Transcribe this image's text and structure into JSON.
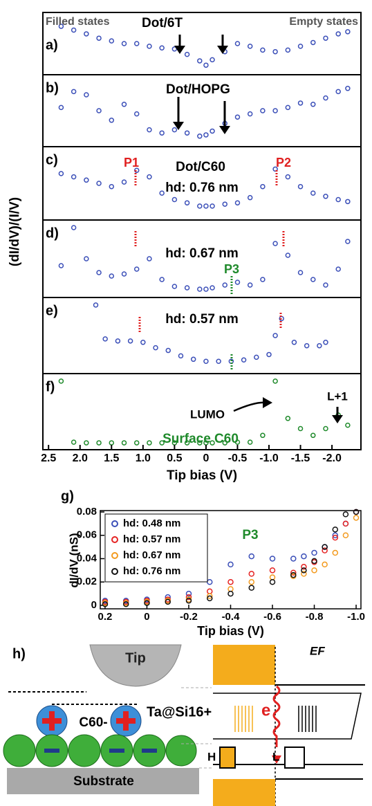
{
  "chart_data": [
    {
      "type": "scatter",
      "label": "a)",
      "ylabel": "(dI/dV)/(I/V)",
      "color": "#3b4fb8",
      "annotations": [
        "Filled states",
        "Dot/6T",
        "Empty states"
      ],
      "xlim": [
        2.59,
        -2.46
      ],
      "ylim": [
        0,
        1
      ],
      "x": [
        2.3,
        2.1,
        1.9,
        1.7,
        1.5,
        1.3,
        1.1,
        0.9,
        0.7,
        0.5,
        0.3,
        0.1,
        0,
        -0.1,
        -0.3,
        -0.5,
        -0.7,
        -0.9,
        -1.1,
        -1.3,
        -1.5,
        -1.7,
        -1.9,
        -2.1,
        -2.25
      ],
      "values": [
        0.82,
        0.75,
        0.68,
        0.6,
        0.55,
        0.5,
        0.5,
        0.45,
        0.42,
        0.4,
        0.3,
        0.18,
        0.1,
        0.2,
        0.35,
        0.5,
        0.45,
        0.38,
        0.35,
        0.38,
        0.45,
        0.52,
        0.6,
        0.68,
        0.72
      ]
    },
    {
      "type": "scatter",
      "label": "b)",
      "color": "#3b4fb8",
      "annotations": [
        "Dot/HOPG"
      ],
      "xlim": [
        2.59,
        -2.46
      ],
      "ylim": [
        0,
        1
      ],
      "x": [
        2.3,
        2.1,
        1.9,
        1.7,
        1.5,
        1.3,
        1.1,
        0.9,
        0.7,
        0.5,
        0.3,
        0.1,
        0,
        -0.1,
        -0.3,
        -0.5,
        -0.7,
        -0.9,
        -1.1,
        -1.3,
        -1.5,
        -1.7,
        -1.9,
        -2.1,
        -2.25
      ],
      "values": [
        0.55,
        0.8,
        0.75,
        0.5,
        0.35,
        0.6,
        0.45,
        0.2,
        0.15,
        0.2,
        0.15,
        0.1,
        0.12,
        0.18,
        0.3,
        0.4,
        0.45,
        0.5,
        0.5,
        0.55,
        0.62,
        0.6,
        0.7,
        0.8,
        0.85
      ]
    },
    {
      "type": "scatter",
      "label": "c)",
      "color": "#3b4fb8",
      "annotations": [
        "P1",
        "Dot/C60",
        "hd: 0.76 nm",
        "P2"
      ],
      "xlim": [
        2.59,
        -2.46
      ],
      "ylim": [
        0,
        1
      ],
      "x": [
        2.3,
        2.1,
        1.9,
        1.7,
        1.5,
        1.3,
        1.1,
        0.9,
        0.7,
        0.5,
        0.3,
        0.1,
        0,
        -0.1,
        -0.3,
        -0.5,
        -0.7,
        -0.9,
        -1.1,
        -1.3,
        -1.5,
        -1.7,
        -1.9,
        -2.1,
        -2.25
      ],
      "values": [
        0.65,
        0.6,
        0.55,
        0.5,
        0.45,
        0.52,
        0.7,
        0.6,
        0.35,
        0.25,
        0.2,
        0.15,
        0.15,
        0.15,
        0.18,
        0.2,
        0.28,
        0.45,
        0.72,
        0.6,
        0.45,
        0.35,
        0.3,
        0.25,
        0.22
      ]
    },
    {
      "type": "scatter",
      "label": "d)",
      "color": "#3b4fb8",
      "annotations": [
        "hd: 0.67 nm",
        "P3"
      ],
      "xlim": [
        2.59,
        -2.46
      ],
      "ylim": [
        0,
        1
      ],
      "x": [
        2.3,
        2.1,
        1.9,
        1.7,
        1.5,
        1.3,
        1.1,
        0.9,
        0.7,
        0.5,
        0.3,
        0.1,
        0,
        -0.1,
        -0.3,
        -0.5,
        -0.7,
        -0.9,
        -1.1,
        -1.3,
        -1.5,
        -1.7,
        -1.9,
        -2.1,
        -2.25
      ],
      "values": [
        0.4,
        0.95,
        0.5,
        0.3,
        0.25,
        0.28,
        0.35,
        0.5,
        0.2,
        0.1,
        0.08,
        0.06,
        0.06,
        0.08,
        0.12,
        0.16,
        0.12,
        0.2,
        0.72,
        0.55,
        0.3,
        0.2,
        0.12,
        0.35,
        0.75
      ]
    },
    {
      "type": "scatter",
      "label": "e)",
      "color": "#3b4fb8",
      "annotations": [
        "hd: 0.57 nm"
      ],
      "xlim": [
        2.59,
        -2.46
      ],
      "ylim": [
        0,
        1
      ],
      "x": [
        1.75,
        1.6,
        1.4,
        1.2,
        1.0,
        0.8,
        0.6,
        0.4,
        0.2,
        0,
        -0.2,
        -0.4,
        -0.6,
        -0.8,
        -1.0,
        -1.1,
        -1.2,
        -1.4,
        -1.6,
        -1.8,
        -1.9
      ],
      "values": [
        0.95,
        0.45,
        0.42,
        0.42,
        0.4,
        0.32,
        0.28,
        0.2,
        0.15,
        0.12,
        0.12,
        0.12,
        0.14,
        0.18,
        0.22,
        0.5,
        0.75,
        0.4,
        0.35,
        0.35,
        0.4
      ]
    },
    {
      "type": "scatter",
      "label": "f)",
      "color": "#1f8a2b",
      "annotations": [
        "LUMO",
        "Surface C60",
        "L+1"
      ],
      "xlim": [
        2.59,
        -2.46
      ],
      "ylim": [
        0,
        1
      ],
      "xlabel": "Tip bias (V)",
      "xticks": [
        2.5,
        {
          "value": 2,
          "label": "2.0"
        },
        1.5,
        {
          "value": 1,
          "label": "1.0"
        },
        0.5,
        0,
        -0.5,
        {
          "value": -1,
          "label": "-1.0"
        },
        -1.5,
        {
          "value": -2,
          "label": "-2.0"
        }
      ],
      "x": [
        2.3,
        2.1,
        1.9,
        1.7,
        1.5,
        1.3,
        1.1,
        0.9,
        0.7,
        0.5,
        0.3,
        0.1,
        0,
        -0.1,
        -0.3,
        -0.5,
        -0.7,
        -0.9,
        -1.1,
        -1.3,
        -1.5,
        -1.7,
        -1.9,
        -2.1,
        -2.25
      ],
      "values": [
        0.95,
        0.05,
        0.04,
        0.04,
        0.04,
        0.04,
        0.04,
        0.04,
        0.04,
        0.04,
        0.04,
        0.04,
        0.04,
        0.04,
        0.04,
        0.05,
        0.05,
        0.15,
        0.95,
        0.4,
        0.25,
        0.15,
        0.25,
        0.45,
        0.3
      ]
    },
    {
      "type": "scatter",
      "label": "g)",
      "xlabel": "Tip bias (V)",
      "ylabel": "dI/dV (nS)",
      "annotations": [
        "P3"
      ],
      "xlim": [
        0.223,
        -1.023
      ],
      "ylim": [
        -0.003,
        0.0812
      ],
      "xticks": [
        0.2,
        0,
        -0.2,
        -0.4,
        -0.6,
        -0.8,
        {
          "value": -1,
          "label": "-1.0"
        }
      ],
      "yticks": [
        0,
        0.02,
        0.04,
        0.06,
        0.08
      ],
      "x": [
        0.2,
        0.1,
        0,
        -0.1,
        -0.2,
        -0.3,
        -0.4,
        -0.5,
        -0.6,
        -0.7,
        -0.75,
        -0.8,
        -0.85,
        -0.9,
        -0.95,
        -1.0
      ],
      "series": [
        {
          "name": "hd: 0.48 nm",
          "color": "#3b4fb8",
          "values": [
            0.004,
            0.004,
            0.005,
            0.007,
            0.01,
            0.02,
            0.035,
            0.042,
            0.04,
            0.04,
            0.042,
            0.045,
            0.05,
            0.06,
            0.07,
            0.08
          ]
        },
        {
          "name": "hd: 0.57 nm",
          "color": "#e52222",
          "values": [
            0.003,
            0.003,
            0.004,
            0.005,
            0.007,
            0.012,
            0.02,
            0.027,
            0.03,
            0.028,
            0.033,
            0.037,
            0.047,
            0.058,
            0.07,
            0.08
          ]
        },
        {
          "name": "hd: 0.67 nm",
          "color": "#f39a1e",
          "values": [
            0.002,
            0.002,
            0.003,
            0.004,
            0.005,
            0.008,
            0.014,
            0.02,
            0.024,
            0.025,
            0.027,
            0.03,
            0.035,
            0.045,
            0.06,
            0.075
          ]
        },
        {
          "name": "hd: 0.76 nm",
          "color": "#111111",
          "values": [
            0.001,
            0.001,
            0.002,
            0.003,
            0.004,
            0.006,
            0.01,
            0.015,
            0.02,
            0.026,
            0.03,
            0.038,
            0.05,
            0.065,
            0.078,
            0.08
          ]
        }
      ]
    }
  ],
  "diagram": {
    "label": "h)",
    "tip": "Tip",
    "dot": "Ta@Si16+",
    "c60": "C60-",
    "substrate": "Substrate",
    "fermi": "EF",
    "electron": "e",
    "homo": "H",
    "lumo": "L"
  }
}
